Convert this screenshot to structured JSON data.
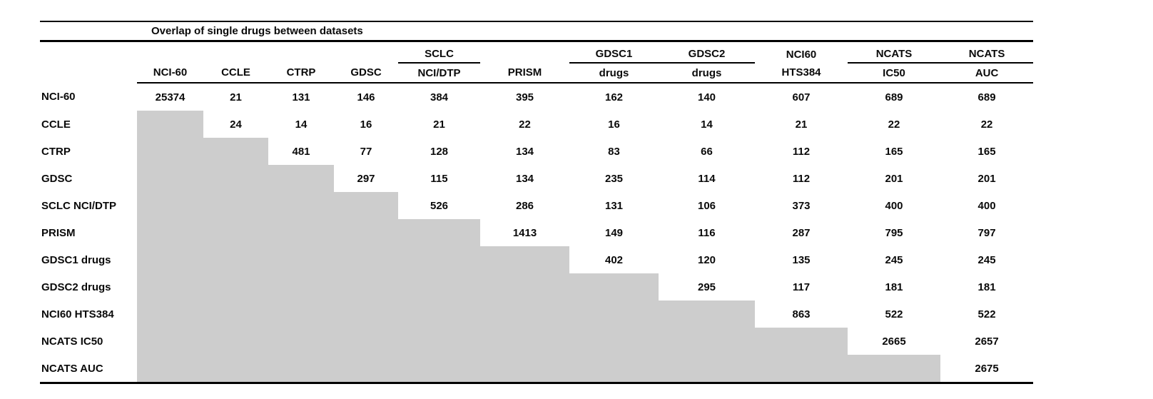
{
  "chart_data": {
    "type": "table",
    "title": "Overlap of single drugs between datasets",
    "column_headers_top": [
      "",
      "",
      "",
      "",
      "SCLC",
      "",
      "GDSC1",
      "GDSC2",
      "NCI60",
      "NCATS",
      "NCATS"
    ],
    "column_headers_bottom": [
      "NCI-60",
      "CCLE",
      "CTRP",
      "GDSC",
      "NCI/DTP",
      "PRISM",
      "drugs",
      "drugs",
      "HTS384",
      "IC50",
      "AUC"
    ],
    "grouped_underline_columns": [
      4,
      6,
      7,
      9,
      10
    ],
    "row_labels": [
      "NCI-60",
      "CCLE",
      "CTRP",
      "GDSC",
      "SCLC NCI/DTP",
      "PRISM",
      "GDSC1 drugs",
      "GDSC2 drugs",
      "NCI60 HTS384",
      "NCATS IC50",
      "NCATS AUC"
    ],
    "matrix": [
      [
        25374,
        21,
        131,
        146,
        384,
        395,
        162,
        140,
        607,
        689,
        689
      ],
      [
        null,
        24,
        14,
        16,
        21,
        22,
        16,
        14,
        21,
        22,
        22
      ],
      [
        null,
        null,
        481,
        77,
        128,
        134,
        83,
        66,
        112,
        165,
        165
      ],
      [
        null,
        null,
        null,
        297,
        115,
        134,
        235,
        114,
        112,
        201,
        201
      ],
      [
        null,
        null,
        null,
        null,
        526,
        286,
        131,
        106,
        373,
        400,
        400
      ],
      [
        null,
        null,
        null,
        null,
        null,
        1413,
        149,
        116,
        287,
        795,
        797
      ],
      [
        null,
        null,
        null,
        null,
        null,
        null,
        402,
        120,
        135,
        245,
        245
      ],
      [
        null,
        null,
        null,
        null,
        null,
        null,
        null,
        295,
        117,
        181,
        181
      ],
      [
        null,
        null,
        null,
        null,
        null,
        null,
        null,
        null,
        863,
        522,
        522
      ],
      [
        null,
        null,
        null,
        null,
        null,
        null,
        null,
        null,
        null,
        2665,
        2657
      ],
      [
        null,
        null,
        null,
        null,
        null,
        null,
        null,
        null,
        null,
        null,
        2675
      ]
    ],
    "layout_hints": {
      "masked_lower_triangle": true,
      "legend_position": "none",
      "grid": "off"
    }
  },
  "colors": {
    "masked_cell": "#cdcdcd",
    "text": "#0a0a0a",
    "rule": "#000000",
    "background": "#ffffff"
  }
}
